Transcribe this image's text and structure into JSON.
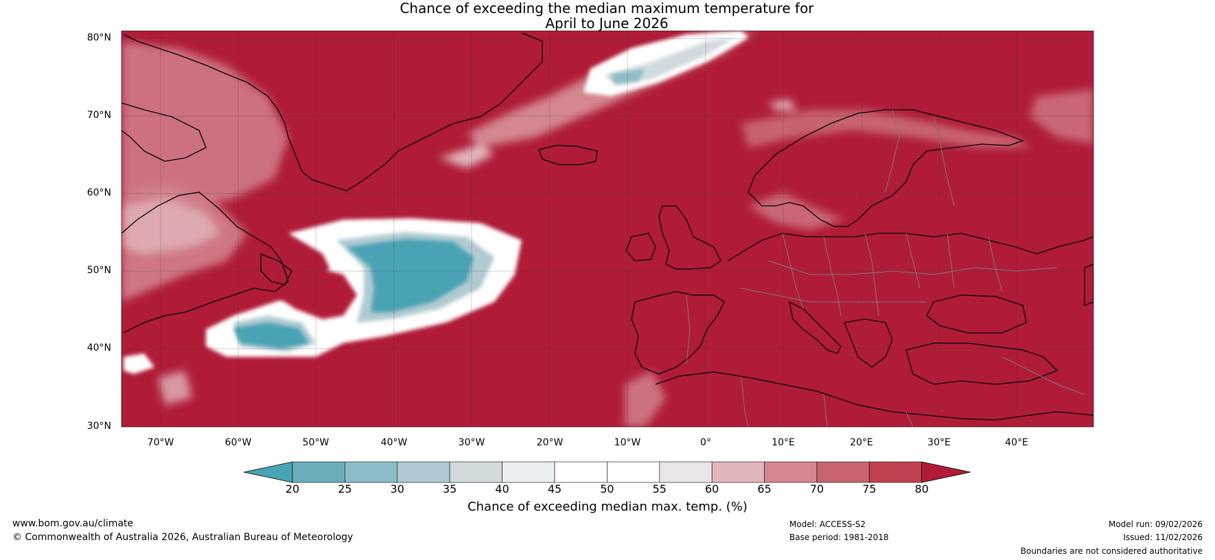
{
  "title": {
    "line1": "Chance of exceeding the median maximum temperature for",
    "line2": "April to June 2026"
  },
  "map": {
    "lat_labels": [
      "80°N",
      "70°N",
      "60°N",
      "50°N",
      "40°N",
      "30°N"
    ],
    "lon_labels": [
      "70°W",
      "60°W",
      "50°W",
      "40°W",
      "30°W",
      "20°W",
      "10°W",
      "0°",
      "10°E",
      "20°E",
      "30°E",
      "40°E"
    ],
    "extent": {
      "lon_min": -75,
      "lon_max": 50,
      "lat_min": 30,
      "lat_max": 81
    }
  },
  "colorbar": {
    "ticks": [
      "20",
      "25",
      "30",
      "35",
      "40",
      "45",
      "50",
      "55",
      "60",
      "65",
      "70",
      "75",
      "80"
    ],
    "colors": [
      "#4aa3b4",
      "#6aaebc",
      "#8cbcc7",
      "#b0cad1",
      "#d2dade",
      "#eaf0f1",
      "#ffffff",
      "#ffffff",
      "#ebe5e7",
      "#e2b6bd",
      "#d48791",
      "#c7646f",
      "#bf414f",
      "#b01c38"
    ],
    "label": "Chance of exceeding median max. temp. (%)"
  },
  "colors": {
    "above": "#b01c38",
    "below": "#4aa3b4",
    "neutral": "#ffffff",
    "coast": "#000000",
    "border": "#7a7a7a"
  },
  "footer": {
    "website": "www.bom.gov.au/climate",
    "copyright": "© Commonwealth of Australia 2026, Australian Bureau of Meteorology",
    "model": "Model: ACCESS-S2",
    "base_period": "Base period: 1981-2018",
    "model_run": "Model run: 09/02/2026",
    "issued": "Issued: 11/02/2026",
    "disclaimer": "Boundaries are not considered authoritative"
  }
}
